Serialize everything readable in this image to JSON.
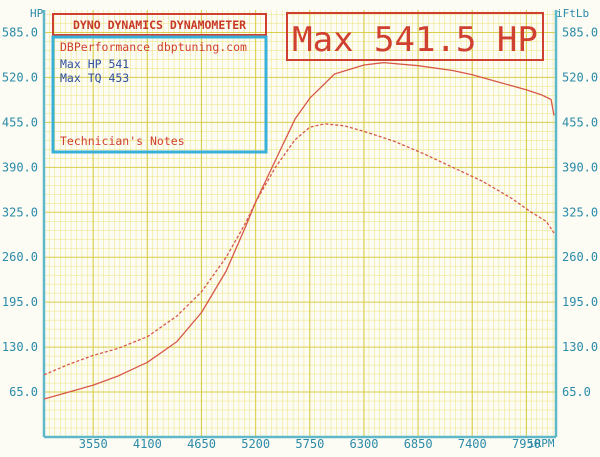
{
  "chart_data": {
    "type": "line",
    "title": "DYNO DYNAMICS DYNAMOMETER",
    "headline": "Max 541.5 HP",
    "info_box": {
      "company": "DBPerformance dbptuning.com",
      "max_hp_line": "Max HP 541",
      "max_tq_line": "Max TQ 453",
      "notes_label": "Technician's Notes"
    },
    "left_axis_unit": "HP",
    "right_axis_unit": "iFtLb",
    "x_unit": "iRPM",
    "xlim": [
      3050,
      8250
    ],
    "ylim": [
      0,
      617.5
    ],
    "y_ticks": [
      "65.0",
      "130.0",
      "195.0",
      "260.0",
      "325.0",
      "390.0",
      "455.0",
      "520.0",
      "585.0"
    ],
    "x_ticks": [
      "3550",
      "4100",
      "4650",
      "5200",
      "5750",
      "6300",
      "6850",
      "7400",
      "7950"
    ],
    "grid": true,
    "colors": {
      "grid": "#e8e070",
      "axis": "#5fb8c8",
      "curves": "#d85848",
      "title_box": "#d04030",
      "info_text": "#3050a0",
      "info_border": "#39b0d8"
    },
    "series": [
      {
        "style": "solid",
        "x": [
          3050,
          3300,
          3550,
          3800,
          4100,
          4400,
          4650,
          4900,
          5100,
          5200,
          5400,
          5600,
          5750,
          6000,
          6300,
          6500,
          6850,
          7200,
          7400,
          7700,
          7950,
          8100,
          8200,
          8230
        ],
        "y": [
          55,
          65,
          75,
          88,
          108,
          138,
          180,
          240,
          305,
          340,
          400,
          460,
          490,
          525,
          538,
          541.5,
          537,
          530,
          524,
          512,
          502,
          495,
          488,
          465
        ]
      },
      {
        "style": "dashed",
        "x": [
          3050,
          3300,
          3550,
          3800,
          4100,
          4400,
          4650,
          4900,
          5100,
          5200,
          5400,
          5600,
          5750,
          5900,
          6100,
          6300,
          6600,
          6900,
          7200,
          7500,
          7800,
          8000,
          8150,
          8230
        ],
        "y": [
          90,
          105,
          118,
          128,
          145,
          175,
          210,
          260,
          310,
          340,
          390,
          430,
          448,
          453,
          450,
          442,
          428,
          410,
          390,
          370,
          345,
          325,
          312,
          295
        ]
      }
    ]
  }
}
